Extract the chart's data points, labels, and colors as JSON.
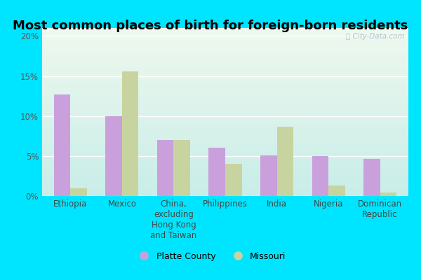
{
  "title": "Most common places of birth for foreign-born residents",
  "categories": [
    "Ethiopia",
    "Mexico",
    "China,\nexcluding\nHong Kong\nand Taiwan",
    "Philippines",
    "India",
    "Nigeria",
    "Dominican\nRepublic"
  ],
  "platte_county": [
    12.7,
    10.0,
    7.0,
    6.0,
    5.1,
    5.0,
    4.6
  ],
  "missouri": [
    1.0,
    15.6,
    7.0,
    4.0,
    8.7,
    1.3,
    0.4
  ],
  "platte_color": "#c9a0dc",
  "missouri_color": "#c8d4a0",
  "background_outer": "#00e5ff",
  "ylim": [
    0,
    21
  ],
  "yticks": [
    0,
    5,
    10,
    15,
    20
  ],
  "ytick_labels": [
    "0%",
    "5%",
    "10%",
    "15%",
    "20%"
  ],
  "legend_platte": "Platte County",
  "legend_missouri": "Missouri",
  "watermark": "City-Data.com",
  "bar_width": 0.32,
  "title_fontsize": 13,
  "tick_fontsize": 8.5,
  "legend_fontsize": 9
}
